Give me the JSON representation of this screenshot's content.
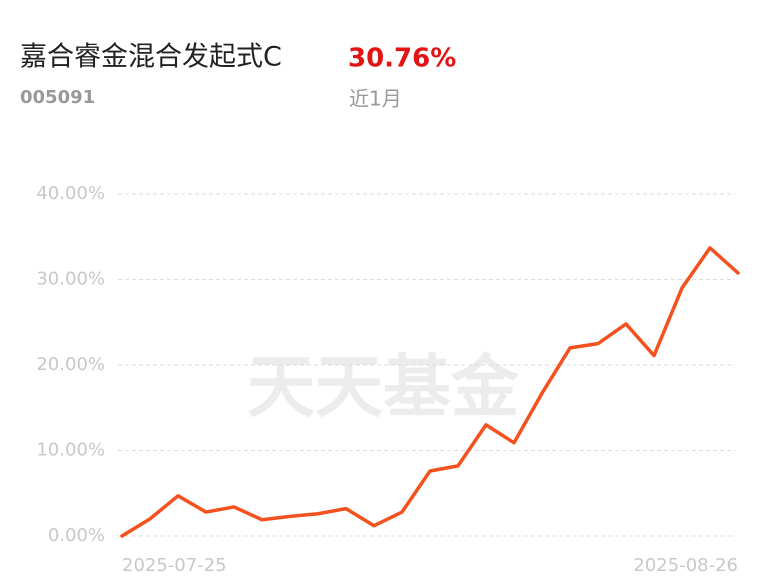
{
  "chart_data": {
    "type": "line",
    "title": "嘉合睿金混合发起式C",
    "code": "005091",
    "return_text": "30.76%",
    "period": "近1月",
    "watermark": "天天基金",
    "categories": [
      "2025-07-25",
      null,
      null,
      null,
      null,
      null,
      null,
      null,
      null,
      null,
      null,
      null,
      null,
      null,
      null,
      null,
      null,
      null,
      null,
      null,
      null,
      null,
      "2025-08-26"
    ],
    "series": [
      {
        "name": null,
        "color": "#f4511e",
        "values": [
          0,
          2.0,
          4.7,
          2.8,
          3.4,
          1.9,
          2.3,
          2.6,
          3.2,
          1.2,
          2.8,
          7.6,
          8.2,
          13.0,
          10.9,
          16.7,
          22.0,
          22.5,
          24.8,
          21.1,
          29.0,
          33.7,
          30.76
        ]
      }
    ],
    "ylim": [
      0,
      40
    ],
    "yticks": [
      {
        "value": 0,
        "label": "0.00%"
      },
      {
        "value": 10,
        "label": "10.00%"
      },
      {
        "value": 20,
        "label": "20.00%"
      },
      {
        "value": 30,
        "label": "30.00%"
      },
      {
        "value": 40,
        "label": "40.00%"
      }
    ],
    "grid": true
  }
}
